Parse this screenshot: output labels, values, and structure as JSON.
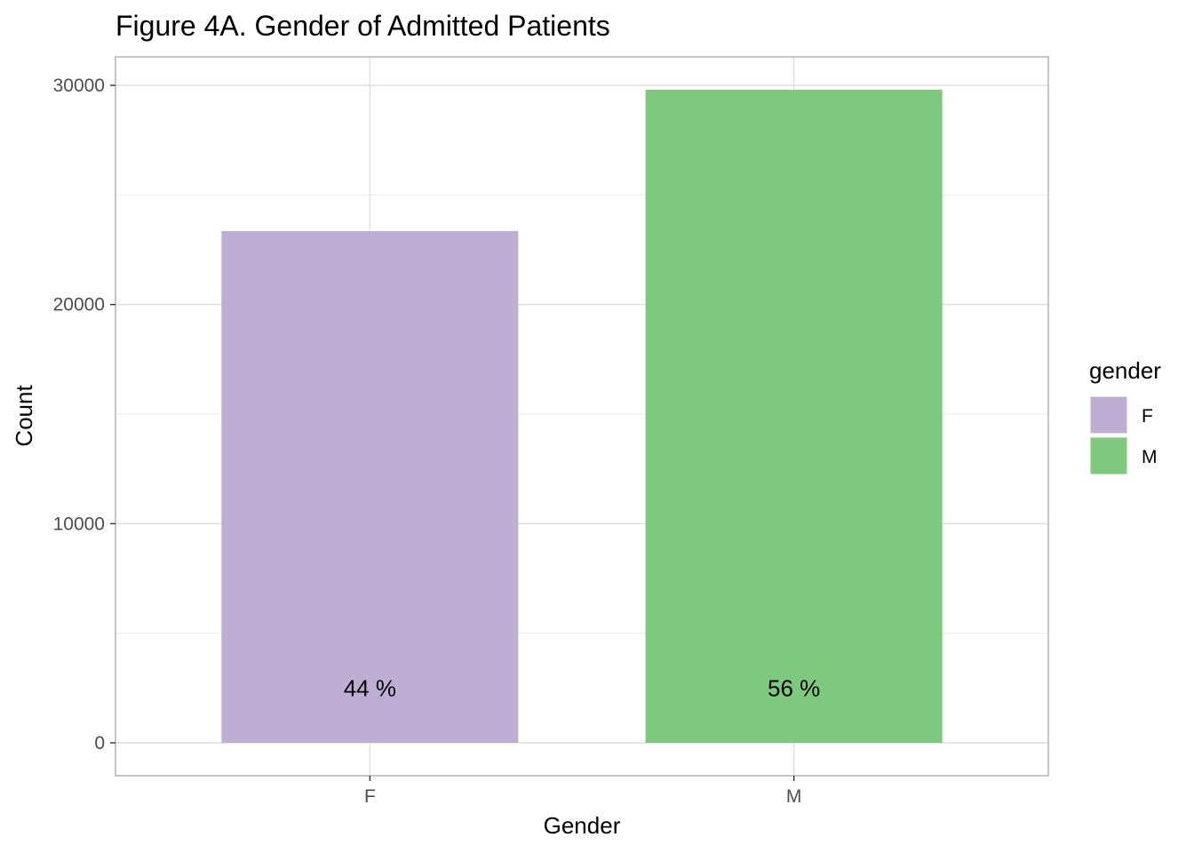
{
  "chart_data": {
    "type": "bar",
    "title": "Figure 4A. Gender of Admitted Patients",
    "xlabel": "Gender",
    "ylabel": "Count",
    "categories": [
      "F",
      "M"
    ],
    "values": [
      23350,
      29800
    ],
    "data_labels": [
      "44 %",
      "56 %"
    ],
    "colors": [
      "#beaed4",
      "#7fc97f"
    ],
    "ylim": [
      -1500,
      31300
    ],
    "yticks": [
      0,
      10000,
      20000,
      30000
    ],
    "ytick_labels": [
      "0",
      "10000",
      "20000",
      "30000"
    ],
    "grid": true,
    "legend": {
      "title": "gender",
      "position": "right",
      "entries": [
        "F",
        "M"
      ]
    }
  }
}
